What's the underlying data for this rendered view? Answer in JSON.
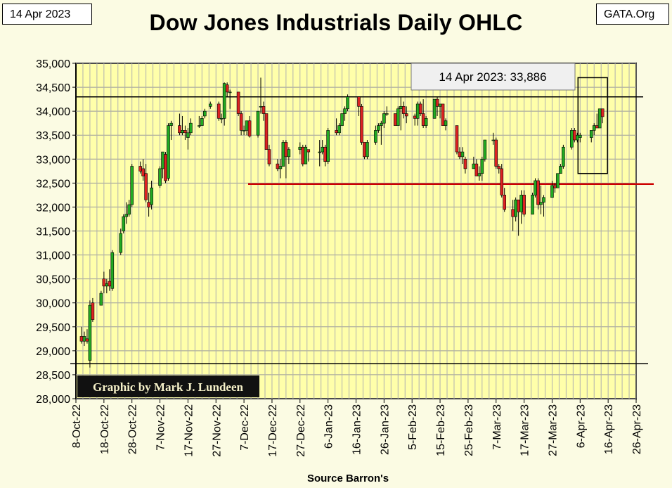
{
  "header": {
    "date_label": "14 Apr 2023",
    "source_label": "GATA.Org",
    "title": "Dow Jones Industrials Daily OHLC"
  },
  "chart_data": {
    "type": "candlestick",
    "title": "Dow Jones Industrials Daily OHLC",
    "xlabel": "Source Barron's",
    "ylabel": "",
    "ylim": [
      28000,
      35000
    ],
    "y_ticks": [
      28000,
      28500,
      29000,
      29500,
      30000,
      30500,
      31000,
      31500,
      32000,
      32500,
      33000,
      33500,
      34000,
      34500,
      35000
    ],
    "y_tick_labels": [
      "28,000",
      "28,500",
      "29,000",
      "29,500",
      "30,000",
      "30,500",
      "31,000",
      "31,500",
      "32,000",
      "32,500",
      "33,000",
      "33,500",
      "34,000",
      "34,500",
      "35,000"
    ],
    "x_range": [
      "2022-10-08",
      "2023-04-26"
    ],
    "x_tick_labels": [
      "8-Oct-22",
      "18-Oct-22",
      "28-Oct-22",
      "7-Nov-22",
      "17-Nov-22",
      "27-Nov-22",
      "7-Dec-22",
      "17-Dec-22",
      "27-Dec-22",
      "6-Jan-23",
      "16-Jan-23",
      "26-Jan-23",
      "5-Feb-23",
      "15-Feb-23",
      "25-Feb-23",
      "7-Mar-23",
      "17-Mar-23",
      "27-Mar-23",
      "6-Apr-23",
      "16-Apr-23",
      "26-Apr-23"
    ],
    "grid": true,
    "colors": {
      "up": "#22aa22",
      "down": "#dd2222",
      "plot_bg": "#ffffaa",
      "support": "#cc0000"
    },
    "annotations": {
      "latest": "14 Apr 2023:  33,886",
      "credit": "Graphic by Mark J. Lundeen"
    },
    "reference_lines": [
      {
        "label": "",
        "value": 34300,
        "color": "#000000"
      },
      {
        "label": "",
        "value": 28730,
        "color": "#000000"
      },
      {
        "label": "",
        "value": 32480,
        "color": "#cc0000"
      }
    ],
    "highlight_box": {
      "from_date": "2023-04-07",
      "to_date": "2023-04-14",
      "low": 32700,
      "high": 34700
    },
    "ohlc": [
      [
        "2022-10-10",
        29300,
        29500,
        29150,
        29200
      ],
      [
        "2022-10-11",
        29200,
        29400,
        29100,
        29300
      ],
      [
        "2022-10-12",
        29250,
        29450,
        29150,
        29200
      ],
      [
        "2022-10-13",
        28800,
        30050,
        28650,
        29950
      ],
      [
        "2022-10-14",
        30000,
        30100,
        29600,
        29650
      ],
      [
        "2022-10-17",
        29950,
        30250,
        29950,
        30200
      ],
      [
        "2022-10-18",
        30500,
        30650,
        30200,
        30350
      ],
      [
        "2022-10-19",
        30350,
        30500,
        30200,
        30400
      ],
      [
        "2022-10-20",
        30450,
        30700,
        30250,
        30350
      ],
      [
        "2022-10-21",
        30300,
        31100,
        30250,
        31050
      ],
      [
        "2022-10-24",
        31050,
        31550,
        31000,
        31450
      ],
      [
        "2022-10-25",
        31500,
        31850,
        31450,
        31800
      ],
      [
        "2022-10-26",
        31800,
        32100,
        31650,
        31850
      ],
      [
        "2022-10-27",
        31850,
        32150,
        31800,
        32050
      ],
      [
        "2022-10-28",
        32050,
        32900,
        32000,
        32850
      ],
      [
        "2022-10-31",
        32850,
        32950,
        32700,
        32750
      ],
      [
        "2022-11-01",
        32800,
        33000,
        32550,
        32650
      ],
      [
        "2022-11-02",
        32700,
        32900,
        32100,
        32150
      ],
      [
        "2022-11-03",
        32100,
        32300,
        31800,
        32000
      ],
      [
        "2022-11-04",
        32050,
        32550,
        31950,
        32400
      ],
      [
        "2022-11-07",
        32450,
        32850,
        32400,
        32800
      ],
      [
        "2022-11-08",
        32800,
        33150,
        32600,
        33150
      ],
      [
        "2022-11-09",
        33100,
        33150,
        32500,
        32550
      ],
      [
        "2022-11-10",
        32600,
        33750,
        32550,
        33700
      ],
      [
        "2022-11-11",
        33700,
        33800,
        33400,
        33750
      ],
      [
        "2022-11-14",
        33700,
        33950,
        33500,
        33550
      ],
      [
        "2022-11-15",
        33550,
        33900,
        33500,
        33600
      ],
      [
        "2022-11-16",
        33600,
        33700,
        33400,
        33550
      ],
      [
        "2022-11-17",
        33450,
        33650,
        33200,
        33550
      ],
      [
        "2022-11-18",
        33550,
        33850,
        33500,
        33750
      ],
      [
        "2022-11-21",
        33700,
        33900,
        33650,
        33700
      ],
      [
        "2022-11-22",
        33700,
        33900,
        33700,
        33850
      ],
      [
        "2022-11-23",
        33900,
        34050,
        33850,
        34000
      ],
      [
        "2022-11-25",
        34100,
        34200,
        34050,
        34150
      ],
      [
        "2022-11-28",
        34150,
        34200,
        33800,
        33850
      ],
      [
        "2022-11-29",
        33850,
        33950,
        33750,
        33850
      ],
      [
        "2022-11-30",
        33850,
        34600,
        33700,
        34580
      ],
      [
        "2022-12-01",
        34550,
        34600,
        34300,
        34400
      ],
      [
        "2022-12-02",
        34400,
        34450,
        34050,
        34400
      ],
      [
        "2022-12-05",
        34400,
        34400,
        33900,
        33950
      ],
      [
        "2022-12-06",
        33950,
        34000,
        33500,
        33600
      ],
      [
        "2022-12-07",
        33600,
        33700,
        33500,
        33600
      ],
      [
        "2022-12-08",
        33600,
        33800,
        33500,
        33800
      ],
      [
        "2022-12-09",
        33800,
        33900,
        33450,
        33480
      ],
      [
        "2022-12-12",
        33500,
        34000,
        33450,
        34000
      ],
      [
        "2022-12-13",
        34100,
        34700,
        33950,
        34100
      ],
      [
        "2022-12-14",
        34100,
        34200,
        33800,
        33950
      ],
      [
        "2022-12-15",
        33950,
        33950,
        33200,
        33200
      ],
      [
        "2022-12-16",
        33200,
        33300,
        32850,
        32900
      ],
      [
        "2022-12-19",
        32900,
        33000,
        32750,
        32800
      ],
      [
        "2022-12-20",
        32800,
        33000,
        32600,
        32850
      ],
      [
        "2022-12-21",
        32850,
        33400,
        32850,
        33350
      ],
      [
        "2022-12-22",
        33350,
        33400,
        32600,
        33050
      ],
      [
        "2022-12-23",
        33050,
        33250,
        32900,
        33200
      ],
      [
        "2022-12-27",
        33200,
        33350,
        33100,
        33250
      ],
      [
        "2022-12-28",
        33250,
        33300,
        32850,
        32900
      ],
      [
        "2022-12-29",
        32900,
        33300,
        32900,
        33250
      ],
      [
        "2022-12-30",
        33200,
        33200,
        32950,
        33150
      ],
      [
        "2023-01-03",
        33150,
        33400,
        32850,
        33150
      ],
      [
        "2023-01-04",
        33150,
        33400,
        33100,
        33250
      ],
      [
        "2023-01-05",
        33250,
        33300,
        32850,
        32950
      ],
      [
        "2023-01-06",
        32950,
        33650,
        32900,
        33600
      ],
      [
        "2023-01-09",
        33600,
        33850,
        33500,
        33550
      ],
      [
        "2023-01-10",
        33550,
        33750,
        33500,
        33700
      ],
      [
        "2023-01-11",
        33700,
        33950,
        33700,
        33950
      ],
      [
        "2023-01-12",
        33950,
        34100,
        33800,
        34050
      ],
      [
        "2023-01-13",
        34050,
        34350,
        34000,
        34300
      ],
      [
        "2023-01-17",
        34300,
        34300,
        33900,
        34100
      ],
      [
        "2023-01-18",
        34100,
        34150,
        33300,
        33350
      ],
      [
        "2023-01-19",
        33350,
        33350,
        33000,
        33050
      ],
      [
        "2023-01-20",
        33050,
        33400,
        33000,
        33350
      ],
      [
        "2023-01-23",
        33350,
        33700,
        33300,
        33600
      ],
      [
        "2023-01-24",
        33600,
        33750,
        33550,
        33700
      ],
      [
        "2023-01-25",
        33700,
        33800,
        33300,
        33750
      ],
      [
        "2023-01-26",
        33750,
        34000,
        33650,
        33950
      ],
      [
        "2023-01-27",
        33950,
        34100,
        33900,
        33950
      ],
      [
        "2023-01-30",
        33950,
        33950,
        33700,
        33700
      ],
      [
        "2023-01-31",
        33700,
        34100,
        33700,
        34050
      ],
      [
        "2023-02-01",
        34050,
        34300,
        33600,
        34100
      ],
      [
        "2023-02-02",
        34100,
        34200,
        33850,
        33950
      ],
      [
        "2023-02-03",
        33950,
        34100,
        33750,
        33900
      ],
      [
        "2023-02-06",
        33900,
        33950,
        33700,
        33850
      ],
      [
        "2023-02-07",
        33850,
        34200,
        33700,
        34150
      ],
      [
        "2023-02-08",
        34150,
        34200,
        33900,
        33950
      ],
      [
        "2023-02-09",
        33950,
        34250,
        33650,
        33700
      ],
      [
        "2023-02-10",
        33700,
        33900,
        33650,
        33850
      ],
      [
        "2023-02-13",
        33850,
        34250,
        33850,
        34250
      ],
      [
        "2023-02-14",
        34250,
        34300,
        33900,
        34100
      ],
      [
        "2023-02-15",
        34100,
        34150,
        33850,
        34150
      ],
      [
        "2023-02-16",
        34150,
        34150,
        33700,
        33700
      ],
      [
        "2023-02-17",
        33700,
        33850,
        33600,
        33800
      ],
      [
        "2023-02-21",
        33700,
        33700,
        33100,
        33150
      ],
      [
        "2023-02-22",
        33150,
        33250,
        33000,
        33050
      ],
      [
        "2023-02-23",
        33050,
        33250,
        32900,
        33150
      ],
      [
        "2023-02-24",
        33000,
        33050,
        32700,
        32800
      ],
      [
        "2023-02-27",
        32800,
        33050,
        32800,
        32900
      ],
      [
        "2023-02-28",
        32900,
        33000,
        32650,
        32650
      ],
      [
        "2023-03-01",
        32650,
        32850,
        32550,
        32700
      ],
      [
        "2023-03-02",
        32700,
        33050,
        32550,
        33000
      ],
      [
        "2023-03-03",
        33000,
        33400,
        32950,
        33400
      ],
      [
        "2023-03-06",
        33400,
        33550,
        33300,
        33400
      ],
      [
        "2023-03-07",
        33400,
        33450,
        32800,
        32850
      ],
      [
        "2023-03-08",
        32850,
        32900,
        32700,
        32800
      ],
      [
        "2023-03-09",
        32800,
        32900,
        32200,
        32250
      ],
      [
        "2023-03-10",
        32250,
        32400,
        31900,
        31950
      ],
      [
        "2023-03-13",
        31950,
        32150,
        31500,
        31800
      ],
      [
        "2023-03-14",
        31800,
        32200,
        31700,
        32150
      ],
      [
        "2023-03-15",
        32150,
        32150,
        31400,
        31900
      ],
      [
        "2023-03-16",
        31900,
        32350,
        31650,
        32250
      ],
      [
        "2023-03-17",
        32250,
        32350,
        31800,
        31850
      ],
      [
        "2023-03-20",
        31850,
        32300,
        31850,
        32250
      ],
      [
        "2023-03-21",
        32250,
        32600,
        32200,
        32550
      ],
      [
        "2023-03-22",
        32550,
        32600,
        31950,
        32050
      ],
      [
        "2023-03-23",
        32050,
        32450,
        31850,
        32100
      ],
      [
        "2023-03-24",
        32100,
        32250,
        31800,
        32200
      ],
      [
        "2023-03-27",
        32200,
        32550,
        32200,
        32450
      ],
      [
        "2023-03-28",
        32450,
        32500,
        32300,
        32400
      ],
      [
        "2023-03-29",
        32400,
        32700,
        32400,
        32700
      ],
      [
        "2023-03-30",
        32700,
        32900,
        32700,
        32850
      ],
      [
        "2023-03-31",
        32850,
        33300,
        32800,
        33250
      ],
      [
        "2023-04-03",
        33250,
        33650,
        33200,
        33600
      ],
      [
        "2023-04-04",
        33600,
        33650,
        33350,
        33400
      ],
      [
        "2023-04-05",
        33400,
        33550,
        33350,
        33500
      ],
      [
        "2023-04-06",
        33450,
        33550,
        33350,
        33500
      ],
      [
        "2023-04-10",
        33450,
        33600,
        33350,
        33600
      ],
      [
        "2023-04-11",
        33600,
        33750,
        33500,
        33700
      ],
      [
        "2023-04-12",
        33700,
        33950,
        33650,
        33650
      ],
      [
        "2023-04-13",
        33650,
        34050,
        33650,
        34050
      ],
      [
        "2023-04-14",
        34050,
        34050,
        33750,
        33886
      ]
    ]
  }
}
